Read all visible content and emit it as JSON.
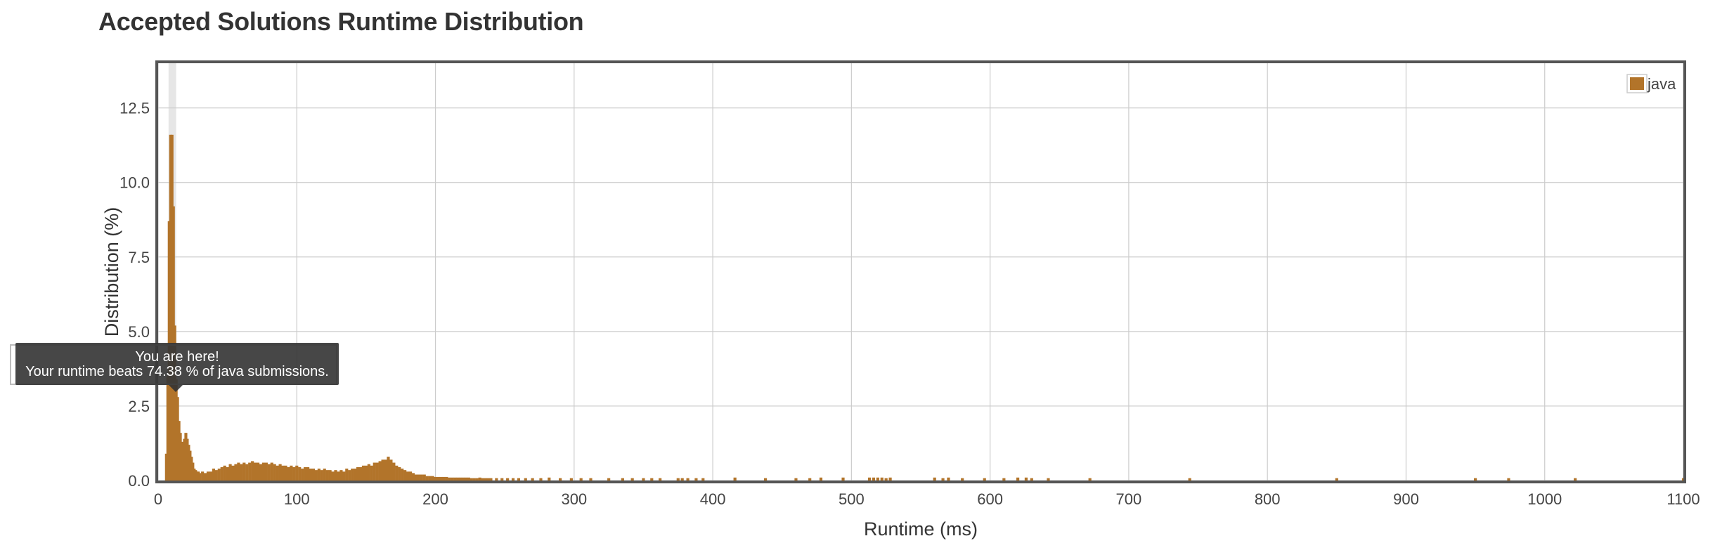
{
  "title": "Accepted Solutions Runtime Distribution",
  "tooltip": {
    "line1": "You are here!",
    "line2": "Your runtime beats 74.38 % of java submissions."
  },
  "colors": {
    "bar": "#b2742a",
    "grid": "#cccccc",
    "frame": "#555555",
    "highlight": "#e6e6e6"
  },
  "chart_data": {
    "type": "bar",
    "xlabel": "Runtime (ms)",
    "ylabel": "Distribution (%)",
    "xlim": [
      0,
      1100
    ],
    "ylim": [
      0,
      14
    ],
    "xticks": [
      0,
      100,
      200,
      300,
      400,
      500,
      600,
      700,
      800,
      900,
      1000,
      1100
    ],
    "yticks": [
      "0.0",
      "2.5",
      "5.0",
      "7.5",
      "10.0",
      "12.5"
    ],
    "legend": {
      "position": "top-right",
      "entries": [
        "java"
      ]
    },
    "grid": true,
    "highlight_runtime": 11,
    "series": [
      {
        "name": "java",
        "x": [
          6,
          7,
          8,
          9,
          10,
          11,
          12,
          13,
          14,
          15,
          16,
          17,
          18,
          19,
          20,
          21,
          22,
          23,
          24,
          25,
          26,
          27,
          28,
          29,
          30,
          32,
          34,
          36,
          38,
          40,
          42,
          44,
          46,
          48,
          50,
          52,
          54,
          56,
          58,
          60,
          62,
          64,
          66,
          68,
          70,
          72,
          74,
          76,
          78,
          80,
          82,
          84,
          86,
          88,
          90,
          92,
          94,
          96,
          98,
          100,
          102,
          104,
          106,
          108,
          110,
          112,
          114,
          116,
          118,
          120,
          122,
          124,
          126,
          128,
          130,
          132,
          134,
          136,
          138,
          140,
          142,
          144,
          146,
          148,
          150,
          152,
          154,
          156,
          158,
          160,
          162,
          164,
          166,
          168,
          170,
          172,
          174,
          176,
          178,
          180,
          182,
          184,
          186,
          188,
          190,
          192,
          194,
          196,
          198,
          200,
          202,
          204,
          206,
          208,
          210,
          212,
          214,
          216,
          218,
          220,
          222,
          224,
          226,
          228,
          230,
          232,
          234,
          236,
          238,
          240,
          244,
          248,
          252,
          256,
          260,
          265,
          270,
          276,
          282,
          290,
          298,
          305,
          312,
          325,
          335,
          342,
          350,
          356,
          362,
          375,
          378,
          382,
          388,
          393,
          416,
          438,
          460,
          470,
          478,
          494,
          513,
          516,
          519,
          522,
          525,
          528,
          560,
          566,
          570,
          580,
          596,
          610,
          620,
          626,
          630,
          642,
          672,
          744,
          850,
          950,
          974,
          1022,
          1100
        ],
        "values": [
          0.9,
          3.5,
          8.7,
          11.6,
          11.6,
          9.2,
          5.2,
          3.4,
          2.8,
          2.0,
          1.6,
          1.3,
          1.2,
          1.4,
          1.6,
          1.4,
          1.2,
          1.0,
          0.8,
          0.6,
          0.4,
          0.35,
          0.3,
          0.3,
          0.25,
          0.3,
          0.25,
          0.3,
          0.3,
          0.4,
          0.35,
          0.4,
          0.45,
          0.5,
          0.45,
          0.55,
          0.5,
          0.55,
          0.6,
          0.55,
          0.6,
          0.55,
          0.6,
          0.65,
          0.6,
          0.6,
          0.55,
          0.6,
          0.6,
          0.55,
          0.6,
          0.55,
          0.5,
          0.55,
          0.5,
          0.5,
          0.45,
          0.5,
          0.45,
          0.5,
          0.45,
          0.4,
          0.45,
          0.45,
          0.4,
          0.4,
          0.35,
          0.4,
          0.35,
          0.4,
          0.35,
          0.35,
          0.3,
          0.35,
          0.3,
          0.35,
          0.3,
          0.4,
          0.35,
          0.4,
          0.4,
          0.45,
          0.45,
          0.5,
          0.5,
          0.55,
          0.5,
          0.6,
          0.6,
          0.65,
          0.7,
          0.7,
          0.8,
          0.7,
          0.6,
          0.5,
          0.45,
          0.4,
          0.35,
          0.3,
          0.3,
          0.25,
          0.2,
          0.2,
          0.2,
          0.2,
          0.15,
          0.15,
          0.15,
          0.12,
          0.12,
          0.12,
          0.12,
          0.12,
          0.1,
          0.1,
          0.1,
          0.1,
          0.1,
          0.1,
          0.1,
          0.1,
          0.08,
          0.08,
          0.08,
          0.1,
          0.08,
          0.08,
          0.08,
          0.08,
          0.08,
          0.08,
          0.08,
          0.08,
          0.08,
          0.08,
          0.08,
          0.08,
          0.1,
          0.08,
          0.08,
          0.08,
          0.08,
          0.08,
          0.08,
          0.08,
          0.08,
          0.08,
          0.08,
          0.08,
          0.08,
          0.08,
          0.08,
          0.08,
          0.1,
          0.08,
          0.08,
          0.08,
          0.1,
          0.1,
          0.1,
          0.1,
          0.1,
          0.1,
          0.08,
          0.1,
          0.1,
          0.08,
          0.1,
          0.08,
          0.08,
          0.08,
          0.1,
          0.1,
          0.08,
          0.08,
          0.08,
          0.08,
          0.08,
          0.08,
          0.08,
          0.08,
          0.08
        ]
      }
    ]
  }
}
